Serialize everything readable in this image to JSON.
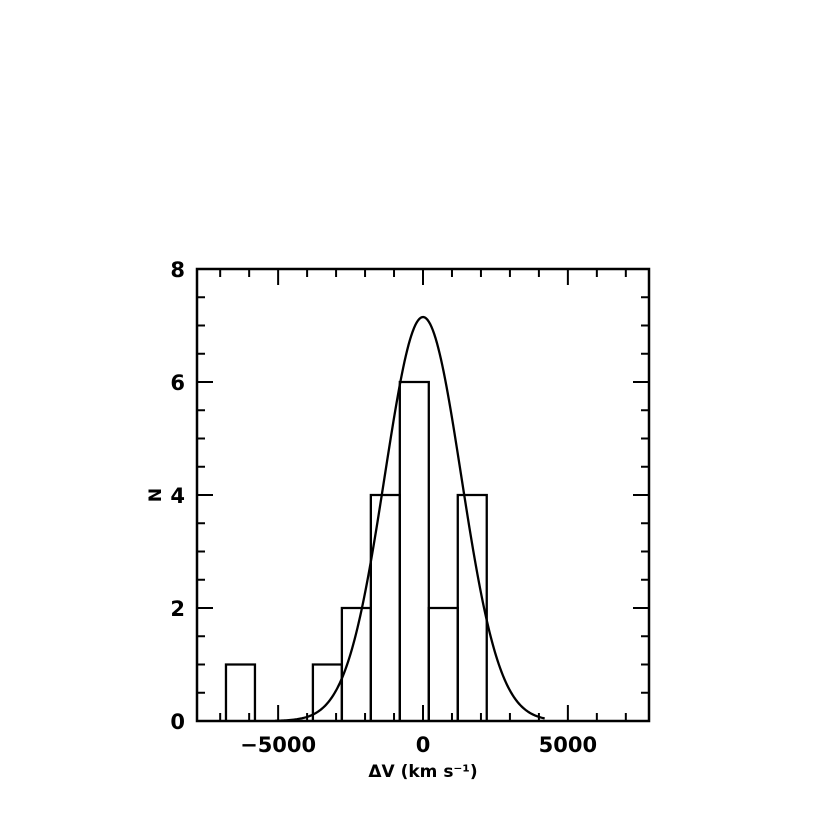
{
  "chart_data": {
    "type": "bar",
    "subtype": "histogram-with-gaussian-fit",
    "xlabel": "ΔV (km s⁻¹)",
    "ylabel": "N",
    "xlim": [
      -7800,
      7800
    ],
    "ylim": [
      0,
      8
    ],
    "xticks": [
      -5000,
      0,
      5000
    ],
    "xtick_labels": [
      "−5000",
      "0",
      "5000"
    ],
    "yticks": [
      0,
      2,
      4,
      6,
      8
    ],
    "ytick_labels": [
      "0",
      "2",
      "4",
      "6",
      "8"
    ],
    "grid": false,
    "legend": "none",
    "histogram": {
      "bin_width": 1000,
      "bins": [
        {
          "x0": -6800,
          "x1": -5800,
          "count": 1
        },
        {
          "x0": -5800,
          "x1": -4800,
          "count": 0
        },
        {
          "x0": -4800,
          "x1": -3800,
          "count": 0
        },
        {
          "x0": -3800,
          "x1": -2800,
          "count": 1
        },
        {
          "x0": -2800,
          "x1": -1800,
          "count": 2
        },
        {
          "x0": -1800,
          "x1": -800,
          "count": 4
        },
        {
          "x0": -800,
          "x1": 200,
          "count": 6
        },
        {
          "x0": 200,
          "x1": 1200,
          "count": 2
        },
        {
          "x0": 1200,
          "x1": 2200,
          "count": 4
        }
      ]
    },
    "gaussian_fit": {
      "amplitude": 7.15,
      "mean": 0,
      "sigma": 1320,
      "x_range": [
        -5100,
        4200
      ]
    },
    "line_color": "#000000"
  }
}
